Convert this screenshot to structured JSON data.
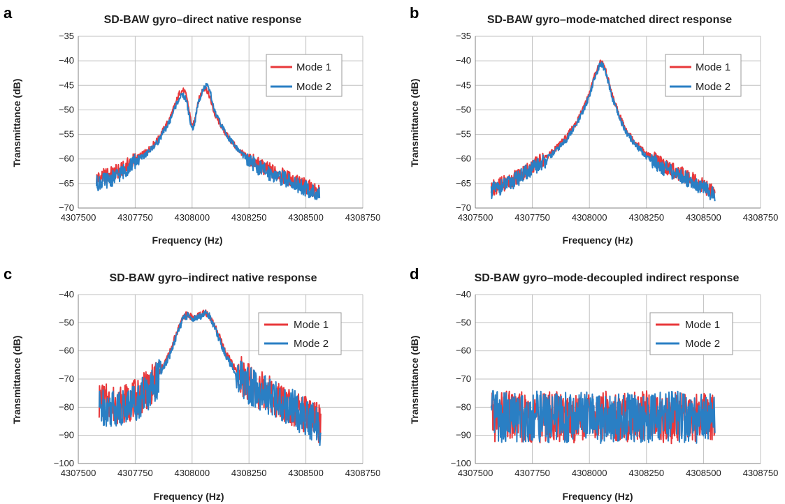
{
  "chart_data": [
    {
      "panel": "a",
      "type": "line",
      "title": "SD-BAW gyro–direct native response",
      "xlabel": "Frequency (Hz)",
      "ylabel": "Transmittance (dB)",
      "xlim": [
        4307500,
        4308750
      ],
      "ylim": [
        -70,
        -35
      ],
      "xticks": [
        4307500,
        4307750,
        4308000,
        4308250,
        4308500,
        4308750
      ],
      "yticks": [
        -35,
        -40,
        -45,
        -50,
        -55,
        -60,
        -65,
        -70
      ],
      "grid": true,
      "legend_position": "top-right",
      "series": [
        {
          "name": "Mode 1",
          "color": "#e8383b",
          "x": [
            4307580,
            4307650,
            4307700,
            4307750,
            4307800,
            4307850,
            4307900,
            4307925,
            4307945,
            4307960,
            4307975,
            4307990,
            4308000,
            4308010,
            4308025,
            4308045,
            4308060,
            4308075,
            4308100,
            4308150,
            4308200,
            4308250,
            4308300,
            4308350,
            4308400,
            4308450,
            4308500,
            4308560
          ],
          "y": [
            -64,
            -63,
            -62,
            -60,
            -58.5,
            -56,
            -52,
            -49,
            -46.5,
            -46,
            -47,
            -51,
            -53.5,
            -52.5,
            -48.5,
            -46,
            -45.5,
            -47,
            -51,
            -55,
            -58,
            -60,
            -61.5,
            -62.5,
            -63.5,
            -64.5,
            -65.5,
            -67
          ]
        },
        {
          "name": "Mode 2",
          "color": "#2a7fc4",
          "x": [
            4307580,
            4307650,
            4307700,
            4307750,
            4307800,
            4307850,
            4307900,
            4307925,
            4307945,
            4307960,
            4307975,
            4307990,
            4308000,
            4308010,
            4308025,
            4308045,
            4308065,
            4308080,
            4308100,
            4308150,
            4308200,
            4308250,
            4308300,
            4308350,
            4308400,
            4308450,
            4308500,
            4308560
          ],
          "y": [
            -65,
            -64,
            -62.5,
            -60.5,
            -59,
            -56.5,
            -52.5,
            -49.5,
            -47.5,
            -47,
            -48,
            -52,
            -54,
            -53,
            -49,
            -46,
            -45,
            -46.5,
            -50.5,
            -55,
            -58,
            -60.5,
            -62,
            -63,
            -64,
            -65,
            -66,
            -67.5
          ]
        }
      ]
    },
    {
      "panel": "b",
      "type": "line",
      "title": "SD-BAW gyro–mode-matched direct response",
      "xlabel": "Frequency (Hz)",
      "ylabel": "Transmittance (dB)",
      "xlim": [
        4307500,
        4308750
      ],
      "ylim": [
        -70,
        -35
      ],
      "xticks": [
        4307500,
        4307750,
        4308000,
        4308250,
        4308500,
        4308750
      ],
      "yticks": [
        -35,
        -40,
        -45,
        -50,
        -55,
        -60,
        -65,
        -70
      ],
      "grid": true,
      "legend_position": "top-right",
      "series": [
        {
          "name": "Mode 1",
          "color": "#e8383b",
          "x": [
            4307570,
            4307650,
            4307700,
            4307750,
            4307800,
            4307850,
            4307900,
            4307950,
            4307980,
            4308000,
            4308020,
            4308035,
            4308050,
            4308065,
            4308080,
            4308100,
            4308130,
            4308160,
            4308200,
            4308250,
            4308300,
            4308350,
            4308400,
            4308450,
            4308500,
            4308550
          ],
          "y": [
            -66,
            -64.5,
            -63,
            -61.5,
            -60,
            -58,
            -55.5,
            -52,
            -49,
            -46.5,
            -43.5,
            -41.5,
            -40,
            -41,
            -43.5,
            -47,
            -51,
            -54,
            -56.5,
            -59,
            -60.5,
            -62,
            -63,
            -64,
            -65.5,
            -67
          ]
        },
        {
          "name": "Mode 2",
          "color": "#2a7fc4",
          "x": [
            4307570,
            4307650,
            4307700,
            4307750,
            4307800,
            4307850,
            4307900,
            4307950,
            4307980,
            4308000,
            4308020,
            4308035,
            4308050,
            4308065,
            4308080,
            4308100,
            4308130,
            4308160,
            4308200,
            4308250,
            4308300,
            4308350,
            4308400,
            4308450,
            4308500,
            4308550
          ],
          "y": [
            -66.5,
            -65,
            -63.5,
            -62,
            -60.5,
            -58.5,
            -56,
            -52.5,
            -49.5,
            -47,
            -44,
            -42,
            -40.5,
            -41.5,
            -44,
            -47.5,
            -51.5,
            -54.5,
            -57,
            -59.5,
            -61,
            -62.5,
            -63.5,
            -64.5,
            -66,
            -67.5
          ]
        }
      ]
    },
    {
      "panel": "c",
      "type": "line",
      "title": "SD-BAW gyro–indirect native response",
      "xlabel": "Frequency (Hz)",
      "ylabel": "Transmittance (dB)",
      "xlim": [
        4307500,
        4308750
      ],
      "ylim": [
        -100,
        -40
      ],
      "xticks": [
        4307500,
        4307750,
        4308000,
        4308250,
        4308500,
        4308750
      ],
      "yticks": [
        -40,
        -50,
        -60,
        -70,
        -80,
        -90,
        -100
      ],
      "grid": true,
      "legend_position": "top-right",
      "series": [
        {
          "name": "Mode 1",
          "color": "#e8383b",
          "x": [
            4307590,
            4307650,
            4307700,
            4307750,
            4307800,
            4307850,
            4307900,
            4307930,
            4307960,
            4307980,
            4308000,
            4308020,
            4308040,
            4308060,
            4308080,
            4308110,
            4308150,
            4308200,
            4308250,
            4308300,
            4308350,
            4308400,
            4308450,
            4308500,
            4308565
          ],
          "y": [
            -78,
            -79,
            -79,
            -77,
            -74,
            -69,
            -61,
            -54,
            -48,
            -47,
            -48,
            -48,
            -47,
            -46.5,
            -48,
            -53,
            -61,
            -68,
            -71,
            -74,
            -76,
            -78,
            -80,
            -83,
            -86
          ]
        },
        {
          "name": "Mode 2",
          "color": "#2a7fc4",
          "x": [
            4307590,
            4307650,
            4307700,
            4307750,
            4307800,
            4307850,
            4307900,
            4307930,
            4307960,
            4307980,
            4308000,
            4308020,
            4308040,
            4308060,
            4308080,
            4308110,
            4308150,
            4308200,
            4308250,
            4308300,
            4308350,
            4308400,
            4308450,
            4308500,
            4308565
          ],
          "y": [
            -80,
            -80,
            -80,
            -78,
            -75,
            -70,
            -62,
            -55,
            -48.5,
            -47.5,
            -48.5,
            -48.5,
            -47.5,
            -46.5,
            -48,
            -54,
            -62,
            -69,
            -72,
            -75,
            -77,
            -79,
            -81,
            -84,
            -87
          ]
        }
      ]
    },
    {
      "panel": "d",
      "type": "line",
      "title": "SD-BAW gyro–mode-decoupled indirect response",
      "xlabel": "Frequency (Hz)",
      "ylabel": "Transmittance (dB)",
      "xlim": [
        4307500,
        4308750
      ],
      "ylim": [
        -100,
        -40
      ],
      "xticks": [
        4307500,
        4307750,
        4308000,
        4308250,
        4308500,
        4308750
      ],
      "yticks": [
        -40,
        -50,
        -60,
        -70,
        -80,
        -90,
        -100
      ],
      "grid": true,
      "legend_position": "top-right",
      "series": [
        {
          "name": "Mode 1",
          "color": "#e8383b",
          "x": [
            4307570,
            4307650,
            4307750,
            4307850,
            4307950,
            4308050,
            4308150,
            4308250,
            4308350,
            4308450,
            4308550
          ],
          "y": [
            -84,
            -83,
            -84,
            -83,
            -84,
            -83,
            -84,
            -83,
            -84,
            -83,
            -84
          ]
        },
        {
          "name": "Mode 2",
          "color": "#2a7fc4",
          "x": [
            4307570,
            4307650,
            4307750,
            4307850,
            4307950,
            4308050,
            4308150,
            4308250,
            4308350,
            4308450,
            4308550
          ],
          "y": [
            -83,
            -84,
            -83,
            -84,
            -83,
            -84,
            -83,
            -84,
            -83,
            -84,
            -83
          ]
        }
      ]
    }
  ]
}
